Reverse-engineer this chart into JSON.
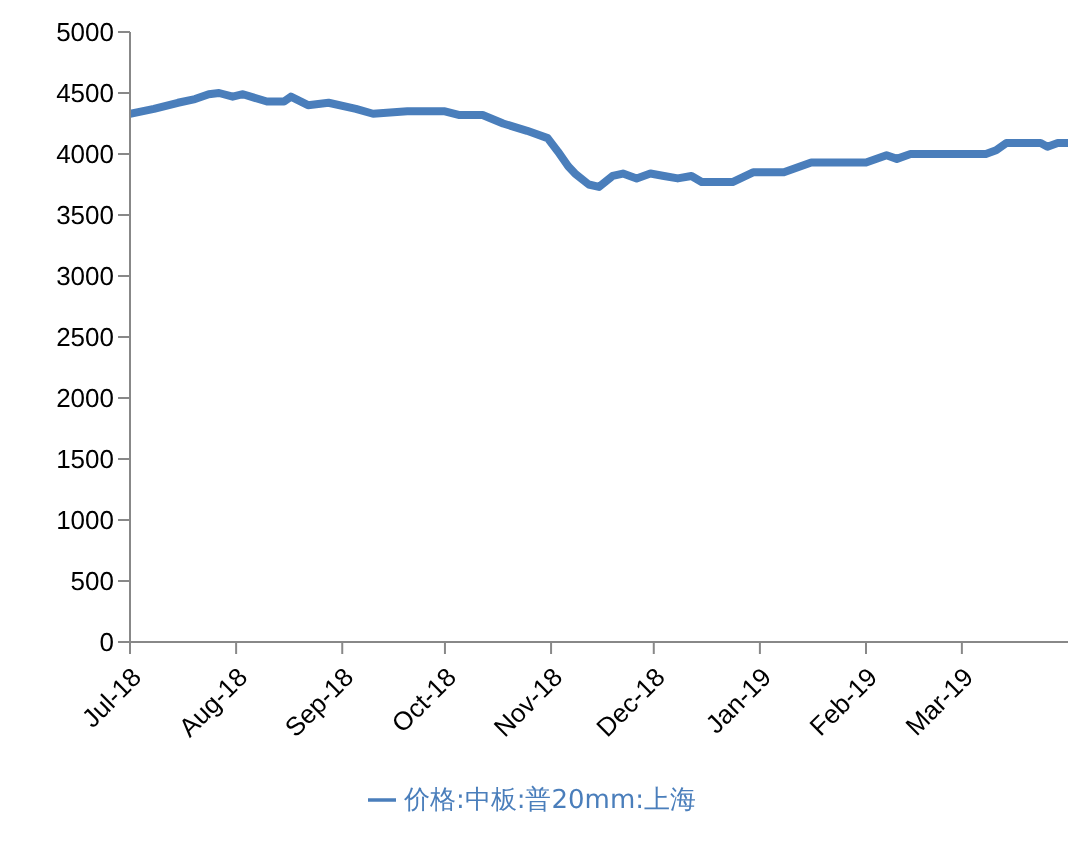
{
  "chart_data": {
    "type": "line",
    "x": [
      "2018-07-01",
      "2018-07-08",
      "2018-07-15",
      "2018-07-20",
      "2018-07-24",
      "2018-07-27",
      "2018-07-31",
      "2018-08-03",
      "2018-08-10",
      "2018-08-15",
      "2018-08-17",
      "2018-08-22",
      "2018-08-28",
      "2018-09-05",
      "2018-09-10",
      "2018-09-20",
      "2018-10-01",
      "2018-10-05",
      "2018-10-12",
      "2018-10-18",
      "2018-10-25",
      "2018-10-31",
      "2018-11-03",
      "2018-11-06",
      "2018-11-08",
      "2018-11-12",
      "2018-11-15",
      "2018-11-19",
      "2018-11-22",
      "2018-11-26",
      "2018-11-30",
      "2018-12-04",
      "2018-12-08",
      "2018-12-12",
      "2018-12-15",
      "2018-12-24",
      "2018-12-30",
      "2019-01-08",
      "2019-01-16",
      "2019-02-01",
      "2019-02-07",
      "2019-02-10",
      "2019-02-14",
      "2019-03-08",
      "2019-03-11",
      "2019-03-14",
      "2019-03-24",
      "2019-03-26",
      "2019-03-29",
      "2019-04-01"
    ],
    "series": [
      {
        "name": "价格:中板:普20mm:上海",
        "color": "#4a7ebb",
        "values": [
          4330,
          4370,
          4420,
          4450,
          4490,
          4500,
          4470,
          4490,
          4430,
          4430,
          4470,
          4400,
          4420,
          4370,
          4330,
          4350,
          4350,
          4320,
          4320,
          4250,
          4190,
          4130,
          4020,
          3900,
          3840,
          3750,
          3730,
          3820,
          3840,
          3800,
          3840,
          3820,
          3800,
          3820,
          3770,
          3770,
          3850,
          3850,
          3930,
          3930,
          3990,
          3960,
          4000,
          4000,
          4030,
          4090,
          4090,
          4060,
          4090,
          4090
        ]
      }
    ],
    "xlim": [
      "2018-07-01",
      "2019-04-01"
    ],
    "xticks": [
      {
        "value": "2018-07-01",
        "label": "Jul-18"
      },
      {
        "value": "2018-08-01",
        "label": "Aug-18"
      },
      {
        "value": "2018-09-01",
        "label": "Sep-18"
      },
      {
        "value": "2018-10-01",
        "label": "Oct-18"
      },
      {
        "value": "2018-11-01",
        "label": "Nov-18"
      },
      {
        "value": "2018-12-01",
        "label": "Dec-18"
      },
      {
        "value": "2019-01-01",
        "label": "Jan-19"
      },
      {
        "value": "2019-02-01",
        "label": "Feb-19"
      },
      {
        "value": "2019-03-01",
        "label": "Mar-19"
      }
    ],
    "ylim": [
      0,
      5000
    ],
    "yticks": [
      0,
      500,
      1000,
      1500,
      2000,
      2500,
      3000,
      3500,
      4000,
      4500,
      5000
    ],
    "legend": "bottom",
    "marker": "none",
    "line_style": "solid"
  }
}
